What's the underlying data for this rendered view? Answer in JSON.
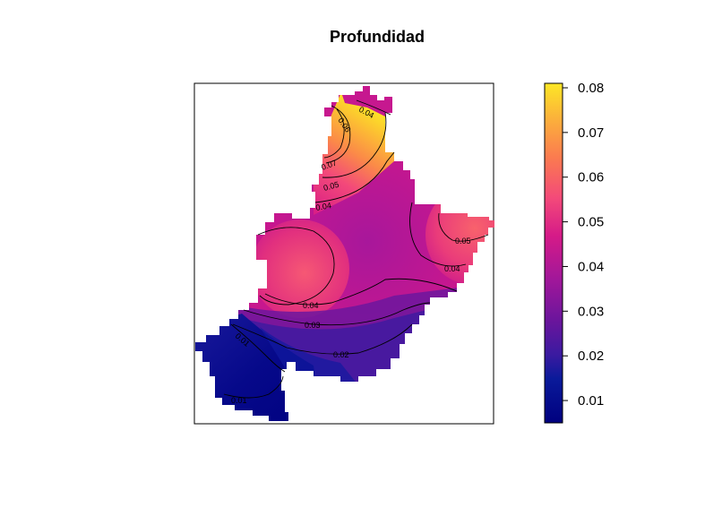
{
  "title": "Profundidad",
  "chart_data": {
    "type": "heatmap",
    "title": "Profundidad",
    "variable": "Profundidad",
    "colorbar": {
      "min": 0.005,
      "max": 0.081,
      "ticks": [
        0.01,
        0.02,
        0.03,
        0.04,
        0.05,
        0.06,
        0.07,
        0.08
      ],
      "tick_labels": [
        "0.01",
        "0.02",
        "0.03",
        "0.04",
        "0.05",
        "0.06",
        "0.07",
        "0.08"
      ],
      "colors": [
        "#00007f",
        "#0a1a9a",
        "#5a189a",
        "#9b179e",
        "#d11a86",
        "#f0457a",
        "#fb7c4e",
        "#fbb13a",
        "#fde725"
      ],
      "placement": "right"
    },
    "contour_labels": [
      "0.04",
      "0.06",
      "0.07",
      "0.05",
      "0.04",
      "0.05",
      "0.04",
      "0.04",
      "0.03",
      "0.02",
      "0.01",
      "0.01"
    ],
    "contour_levels": [
      0.01,
      0.02,
      0.03,
      0.04,
      0.05,
      0.06,
      0.07
    ],
    "grid": false
  },
  "colors": {
    "frame": "#000000",
    "background": "#ffffff"
  }
}
